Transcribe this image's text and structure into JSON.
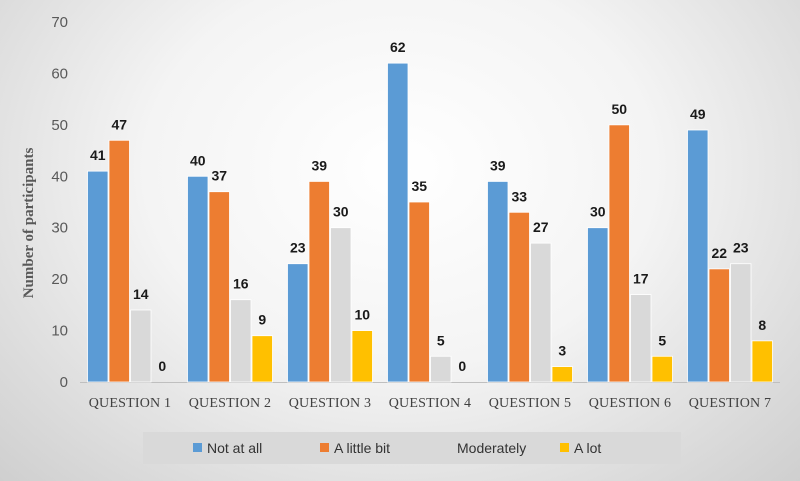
{
  "chart_data": {
    "type": "bar",
    "title": "",
    "xlabel": "",
    "ylabel": "Number of participants",
    "ylim": [
      0,
      70
    ],
    "yticks": [
      0,
      10,
      20,
      30,
      40,
      50,
      60,
      70
    ],
    "grid": false,
    "legend_position": "bottom",
    "categories": [
      "QUESTION 1",
      "QUESTION 2",
      "QUESTION 3",
      "QUESTION 4",
      "QUESTION 5",
      "QUESTION 6",
      "QUESTION 7"
    ],
    "series": [
      {
        "name": "Not at all",
        "color": "#5b9bd5",
        "values": [
          41,
          40,
          23,
          62,
          39,
          30,
          49
        ]
      },
      {
        "name": "A little bit",
        "color": "#ed7d31",
        "values": [
          47,
          37,
          39,
          35,
          33,
          50,
          22
        ]
      },
      {
        "name": "Moderately",
        "color": "#d9d9d9",
        "values": [
          14,
          16,
          30,
          5,
          27,
          17,
          23
        ]
      },
      {
        "name": "A lot",
        "color": "#ffc000",
        "values": [
          0,
          9,
          10,
          0,
          3,
          5,
          8
        ]
      }
    ]
  }
}
